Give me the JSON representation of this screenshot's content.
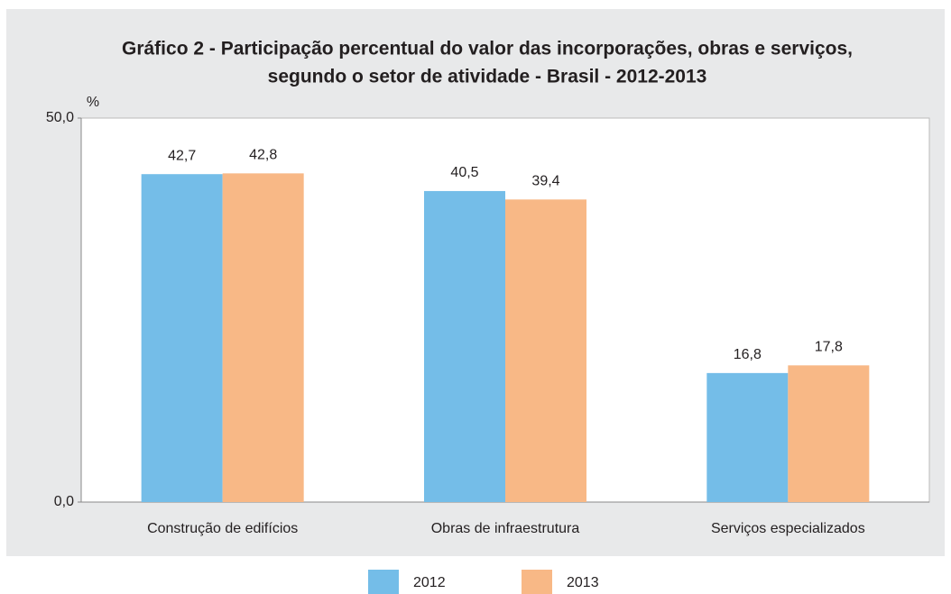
{
  "chart_data": {
    "type": "bar",
    "title": "Gráfico 2 - Participação percentual do valor das incorporações, obras e serviços,",
    "subtitle": "segundo o setor de atividade - Brasil - 2012-2013",
    "y_label": "%",
    "categories": [
      "Construção de edifícios",
      "Obras de infraestrutura",
      "Serviços especializados"
    ],
    "series": [
      {
        "name": "2012",
        "color": "#74bde8",
        "values": [
          42.7,
          40.5,
          16.8
        ],
        "value_labels": [
          "42,7",
          "40,5",
          "16,8"
        ]
      },
      {
        "name": "2013",
        "color": "#f8b886",
        "values": [
          42.8,
          39.4,
          17.8
        ],
        "value_labels": [
          "42,8",
          "39,4",
          "17,8"
        ]
      }
    ],
    "ylim": [
      0,
      50
    ],
    "yticks": [
      {
        "value": 0,
        "label": "0,0"
      },
      {
        "value": 50,
        "label": "50,0"
      }
    ]
  }
}
